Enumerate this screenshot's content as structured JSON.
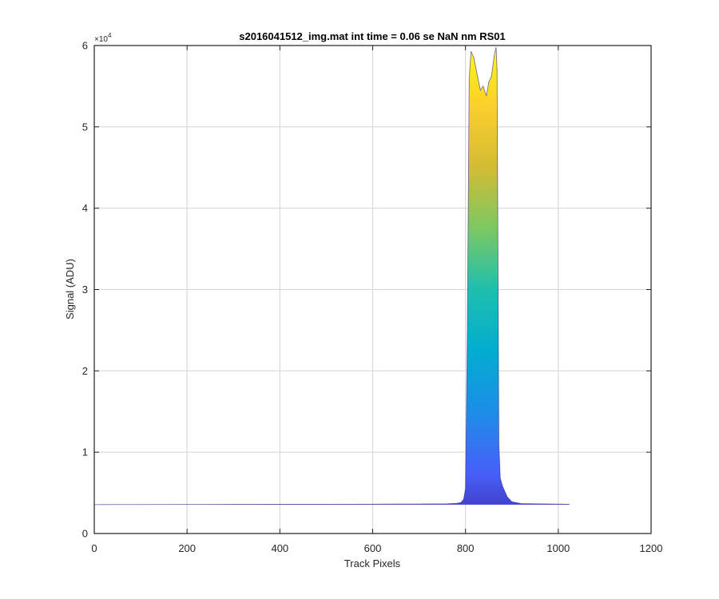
{
  "chart_data": {
    "type": "area",
    "title": "s2016041512_img.mat int time = 0.06 se  NaN nm RS01",
    "xlabel": "Track Pixels",
    "ylabel": "Signal (ADU)",
    "xlim": [
      0,
      1200
    ],
    "ylim": [
      0,
      6
    ],
    "y_multiplier": {
      "prefix": "×10",
      "exponent": "4"
    },
    "grid": true,
    "x_ticks": [
      "0",
      "200",
      "400",
      "600",
      "800",
      "1000",
      "1200"
    ],
    "y_ticks": [
      "0",
      "1",
      "2",
      "3",
      "4",
      "5",
      "6"
    ],
    "colormap": [
      "#3e26a8",
      "#4760f9",
      "#1c8ee8",
      "#02adcf",
      "#1fbfae",
      "#7cc861",
      "#d2bc34",
      "#fbcf2d",
      "#f9fb15"
    ],
    "series": [
      {
        "x": [
          1,
          50,
          100,
          200,
          300,
          400,
          500,
          600,
          700,
          760,
          780,
          790,
          796,
          800,
          804,
          808,
          812,
          818,
          825,
          832,
          838,
          845,
          850,
          856,
          862,
          866,
          868,
          870,
          872,
          875,
          880,
          890,
          900,
          920,
          950,
          1000,
          1024
        ],
        "values": [
          0.355,
          0.356,
          0.356,
          0.357,
          0.358,
          0.359,
          0.36,
          0.361,
          0.363,
          0.365,
          0.37,
          0.38,
          0.42,
          0.55,
          2.5,
          5.6,
          5.93,
          5.85,
          5.65,
          5.45,
          5.5,
          5.38,
          5.55,
          5.62,
          5.88,
          5.98,
          5.7,
          3.5,
          1.1,
          0.68,
          0.58,
          0.45,
          0.39,
          0.368,
          0.365,
          0.362,
          0.36
        ]
      }
    ]
  }
}
